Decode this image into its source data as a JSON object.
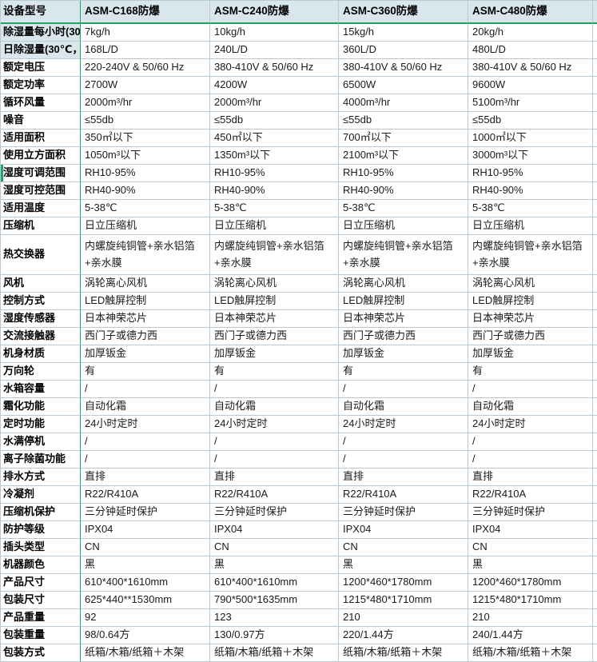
{
  "app": {
    "kind": "spreadsheet-spec-sheet"
  },
  "colors": {
    "header_bg": "#d9e6ec",
    "freeze_line_green": "#21a366",
    "row_accent_green": "#21a366",
    "gridline": "#b9c9d6",
    "text": "#1a1a1a",
    "cell_bg": "#ffffff"
  },
  "table": {
    "columns": [
      "设备型号",
      "ASM-C168防爆",
      "ASM-C240防爆",
      "ASM-C360防爆",
      "ASM-C480防爆"
    ],
    "rows": [
      {
        "label": "除湿量每小时(30",
        "label_tinted": true,
        "values": [
          "7kg/h",
          "10kg/h",
          "15kg/h",
          "20kg/h"
        ]
      },
      {
        "label": "日除湿量(30℃，",
        "label_tinted": true,
        "values": [
          "168L/D",
          "240L/D",
          "360L/D",
          "480L/D"
        ]
      },
      {
        "label": "额定电压",
        "values": [
          "220-240V & 50/60 Hz",
          "380-410V & 50/60 Hz",
          "380-410V & 50/60 Hz",
          "380-410V & 50/60 Hz"
        ]
      },
      {
        "label": "额定功率",
        "values": [
          "2700W",
          "4200W",
          "6500W",
          "9600W"
        ]
      },
      {
        "label": "循环风量",
        "values": [
          "2000m³/hr",
          "2000m³/hr",
          "4000m³/hr",
          "5100m³/hr"
        ]
      },
      {
        "label": "噪音",
        "values": [
          "≤55db",
          "≤55db",
          "≤55db",
          "≤55db"
        ]
      },
      {
        "label": "适用面积",
        "values": [
          "350㎡以下",
          "450㎡以下",
          "700㎡以下",
          "1000㎡以下"
        ]
      },
      {
        "label": "使用立方面积",
        "values": [
          "1050m³以下",
          "1350m³以下",
          "2100m³以下",
          "3000m³以下"
        ]
      },
      {
        "label": "湿度可调范围",
        "accent": true,
        "values": [
          "RH10-95%",
          "RH10-95%",
          "RH10-95%",
          "RH10-95%"
        ]
      },
      {
        "label": "湿度可控范围",
        "values": [
          "RH40-90%",
          "RH40-90%",
          "RH40-90%",
          "RH40-90%"
        ]
      },
      {
        "label": "适用温度",
        "values": [
          "5-38℃",
          "5-38℃",
          "5-38℃",
          "5-38℃"
        ]
      },
      {
        "label": "压缩机",
        "values": [
          "日立压缩机",
          "日立压缩机",
          "日立压缩机",
          "日立压缩机"
        ]
      },
      {
        "label": "热交换器",
        "tall": true,
        "values": [
          "内螺旋纯铜管+亲水铝箔+亲水膜",
          "内螺旋纯铜管+亲水铝箔+亲水膜",
          "内螺旋纯铜管+亲水铝箔+亲水膜",
          "内螺旋纯铜管+亲水铝箔+亲水膜"
        ]
      },
      {
        "label": "风机",
        "values": [
          "涡轮离心风机",
          "涡轮离心风机",
          "涡轮离心风机",
          "涡轮离心风机"
        ]
      },
      {
        "label": "控制方式",
        "values": [
          "LED触屏控制",
          "LED触屏控制",
          "LED触屏控制",
          "LED触屏控制"
        ]
      },
      {
        "label": "湿度传感器",
        "values": [
          "日本神荣芯片",
          "日本神荣芯片",
          "日本神荣芯片",
          "日本神荣芯片"
        ]
      },
      {
        "label": "交流接触器",
        "values": [
          "西门子或德力西",
          "西门子或德力西",
          "西门子或德力西",
          "西门子或德力西"
        ]
      },
      {
        "label": "机身材质",
        "values": [
          "加厚钣金",
          "加厚钣金",
          "加厚钣金",
          "加厚钣金"
        ]
      },
      {
        "label": "万向轮",
        "values": [
          "有",
          "有",
          "有",
          "有"
        ]
      },
      {
        "label": "水箱容量",
        "values": [
          "/",
          "/",
          "/",
          "/"
        ]
      },
      {
        "label": "霜化功能",
        "values": [
          "自动化霜",
          "自动化霜",
          "自动化霜",
          "自动化霜"
        ]
      },
      {
        "label": "定时功能",
        "values": [
          "24小时定时",
          "24小时定时",
          "24小时定时",
          "24小时定时"
        ]
      },
      {
        "label": "水满停机",
        "values": [
          "/",
          "/",
          "/",
          "/"
        ]
      },
      {
        "label": "离子除菌功能",
        "values": [
          "/",
          "/",
          "/",
          "/"
        ]
      },
      {
        "label": "排水方式",
        "values": [
          "直排",
          "直排",
          "直排",
          "直排"
        ]
      },
      {
        "label": "冷凝剂",
        "values": [
          "R22/R410A",
          "R22/R410A",
          "R22/R410A",
          "R22/R410A"
        ]
      },
      {
        "label": "压缩机保护",
        "values": [
          "三分钟延时保护",
          "三分钟延时保护",
          "三分钟延时保护",
          "三分钟延时保护"
        ]
      },
      {
        "label": "防护等级",
        "values": [
          "IPX04",
          "IPX04",
          "IPX04",
          "IPX04"
        ]
      },
      {
        "label": "插头类型",
        "values": [
          "CN",
          "CN",
          "CN",
          "CN"
        ]
      },
      {
        "label": "机器颜色",
        "values": [
          "黑",
          "黑",
          "黑",
          "黑"
        ]
      },
      {
        "label": "产品尺寸",
        "values": [
          "610*400*1610mm",
          "610*400*1610mm",
          "1200*460*1780mm",
          "1200*460*1780mm"
        ]
      },
      {
        "label": "包装尺寸",
        "values": [
          "625*440**1530mm",
          "790*500*1635mm",
          "1215*480*1710mm",
          "1215*480*1710mm"
        ]
      },
      {
        "label": "产品重量",
        "values": [
          "92",
          "123",
          "210",
          "210"
        ]
      },
      {
        "label": "包装重量",
        "values": [
          "98/0.64方",
          "130/0.97方",
          "220/1.44方",
          "240/1.44方"
        ]
      },
      {
        "label": "包装方式",
        "values": [
          "纸箱/木箱/纸箱＋木架",
          "纸箱/木箱/纸箱＋木架",
          "纸箱/木箱/纸箱＋木架",
          "纸箱/木箱/纸箱＋木架"
        ]
      }
    ]
  }
}
